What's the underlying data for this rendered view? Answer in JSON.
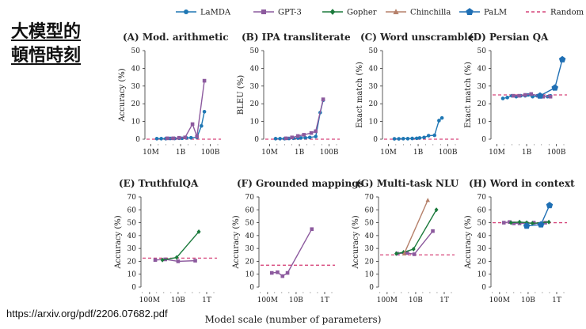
{
  "page": {
    "title_line1": "大模型的",
    "title_line2": "頓悟時刻",
    "source": "https://arxiv.org/pdf/2206.07682.pdf",
    "x_axis_label": "Model scale (number of parameters)"
  },
  "legend": [
    {
      "name": "LaMDA",
      "color": "#1f77b4",
      "marker": "circle",
      "style": "solid"
    },
    {
      "name": "GPT-3",
      "color": "#8c5a9e",
      "marker": "square",
      "style": "solid"
    },
    {
      "name": "Gopher",
      "color": "#1b7a3c",
      "marker": "diamond",
      "style": "solid"
    },
    {
      "name": "Chinchilla",
      "color": "#b5806a",
      "marker": "triangle",
      "style": "solid"
    },
    {
      "name": "PaLM",
      "color": "#1f6fb4",
      "marker": "pentagon",
      "style": "solid"
    },
    {
      "name": "Random",
      "color": "#d6457a",
      "marker": "none",
      "style": "dashed"
    }
  ],
  "chart_data": [
    {
      "type": "line",
      "title": "(A) Mod. arithmetic",
      "ylabel": "Accuracy (%)",
      "ylim": [
        0,
        50
      ],
      "yticks": [
        0,
        10,
        20,
        30,
        40,
        50
      ],
      "xticks": [
        {
          "label": "10M",
          "v": 7
        },
        {
          "label": "1B",
          "v": 9
        },
        {
          "label": "100B",
          "v": 11
        }
      ],
      "xlim": [
        6.6,
        11.5
      ],
      "random": 0,
      "series": [
        {
          "name": "LaMDA",
          "x": [
            7.4,
            7.7,
            8.0,
            8.3,
            8.6,
            8.9,
            9.1,
            9.4,
            9.7,
            10.1,
            10.4,
            10.6
          ],
          "y": [
            0.3,
            0.3,
            0.3,
            0.4,
            0.4,
            0.5,
            0.5,
            0.7,
            0.8,
            1,
            7.5,
            15.5
          ]
        },
        {
          "name": "GPT-3",
          "x": [
            8.1,
            8.5,
            8.9,
            9.3,
            9.8,
            10.1,
            10.6
          ],
          "y": [
            0.5,
            0.5,
            0.8,
            1,
            8.5,
            1.5,
            33
          ]
        }
      ]
    },
    {
      "type": "line",
      "title": "(B) IPA transliterate",
      "ylabel": "BLEU (%)",
      "ylim": [
        0,
        50
      ],
      "yticks": [
        0,
        10,
        20,
        30,
        40,
        50
      ],
      "xticks": [
        {
          "label": "10M",
          "v": 7
        },
        {
          "label": "1B",
          "v": 9
        },
        {
          "label": "100B",
          "v": 11
        }
      ],
      "xlim": [
        6.6,
        11.5
      ],
      "random": 0,
      "series": [
        {
          "name": "LaMDA",
          "x": [
            7.4,
            7.7,
            8.0,
            8.3,
            8.6,
            8.9,
            9.1,
            9.4,
            9.7,
            10.1,
            10.4,
            10.6
          ],
          "y": [
            0.3,
            0.3,
            0.3,
            0.4,
            0.5,
            0.6,
            0.7,
            0.8,
            1,
            1.5,
            15,
            22
          ]
        },
        {
          "name": "GPT-3",
          "x": [
            8.1,
            8.5,
            8.9,
            9.3,
            9.8,
            10.1,
            10.6
          ],
          "y": [
            0.5,
            1,
            1.8,
            2.5,
            3.5,
            4.5,
            22.5
          ]
        }
      ]
    },
    {
      "type": "line",
      "title": "(C) Word unscramble",
      "ylabel": "Exact match (%)",
      "ylim": [
        0,
        50
      ],
      "yticks": [
        0,
        10,
        20,
        30,
        40,
        50
      ],
      "xticks": [
        {
          "label": "10M",
          "v": 7
        },
        {
          "label": "1B",
          "v": 9
        },
        {
          "label": "100B",
          "v": 11
        }
      ],
      "xlim": [
        6.6,
        11.5
      ],
      "random": 0,
      "series": [
        {
          "name": "LaMDA",
          "x": [
            7.4,
            7.7,
            8.0,
            8.3,
            8.6,
            8.9,
            9.1,
            9.4,
            9.7,
            10.1,
            10.4,
            10.6
          ],
          "y": [
            0.2,
            0.2,
            0.3,
            0.3,
            0.4,
            0.5,
            0.7,
            1,
            2,
            2.2,
            10.5,
            12
          ]
        }
      ]
    },
    {
      "type": "line",
      "title": "(D) Persian QA",
      "ylabel": "Exact match (%)",
      "ylim": [
        0,
        50
      ],
      "yticks": [
        0,
        10,
        20,
        30,
        40,
        50
      ],
      "xticks": [
        {
          "label": "10M",
          "v": 7
        },
        {
          "label": "1B",
          "v": 9
        },
        {
          "label": "100B",
          "v": 11
        }
      ],
      "xlim": [
        6.6,
        11.5
      ],
      "random": 25,
      "series": [
        {
          "name": "LaMDA",
          "x": [
            7.4,
            7.7,
            8.0,
            8.3,
            8.6,
            8.9,
            9.1,
            9.4,
            9.7,
            10.1,
            10.4,
            10.6
          ],
          "y": [
            23,
            23.5,
            24.5,
            24,
            24.5,
            24.5,
            25,
            24,
            24.5,
            24,
            24,
            24.5
          ]
        },
        {
          "name": "GPT-3",
          "x": [
            8.1,
            8.5,
            8.9,
            9.3,
            9.8,
            10.1,
            10.6
          ],
          "y": [
            24.5,
            24.5,
            25,
            25.5,
            24.5,
            24,
            24
          ]
        },
        {
          "name": "PaLM",
          "x": [
            9.9,
            10.9,
            11.4
          ],
          "y": [
            24.5,
            29,
            45
          ]
        }
      ]
    },
    {
      "type": "line",
      "title": "(E) TruthfulQA",
      "ylabel": "Accuracy (%)",
      "ylim": [
        0,
        70
      ],
      "yticks": [
        0,
        10,
        20,
        30,
        40,
        50,
        60,
        70
      ],
      "xticks": [
        {
          "label": "100M",
          "v": 8
        },
        {
          "label": "10B",
          "v": 10
        },
        {
          "label": "1T",
          "v": 12
        }
      ],
      "xlim": [
        7.4,
        12.5
      ],
      "random": 22.5,
      "series": [
        {
          "name": "GPT-3",
          "x": [
            8.4,
            9.1,
            10.0,
            11.2
          ],
          "y": [
            21,
            21.5,
            20,
            20.5
          ]
        },
        {
          "name": "Gopher",
          "x": [
            8.9,
            9.9,
            11.45
          ],
          "y": [
            21,
            23,
            43
          ]
        }
      ]
    },
    {
      "type": "line",
      "title": "(F) Grounded mappings",
      "ylabel": "Accuracy (%)",
      "ylim": [
        0,
        70
      ],
      "yticks": [
        0,
        10,
        20,
        30,
        40,
        50,
        60,
        70
      ],
      "xticks": [
        {
          "label": "100M",
          "v": 8
        },
        {
          "label": "10B",
          "v": 10
        },
        {
          "label": "1T",
          "v": 12
        }
      ],
      "xlim": [
        7.4,
        12.5
      ],
      "random": 17,
      "series": [
        {
          "name": "GPT-3",
          "x": [
            8.3,
            8.7,
            9.05,
            9.4,
            11.1
          ],
          "y": [
            11,
            11.5,
            8.5,
            11,
            45
          ]
        }
      ]
    },
    {
      "type": "line",
      "title": "(G) Multi-task NLU",
      "ylabel": "Accuracy (%)",
      "ylim": [
        0,
        70
      ],
      "yticks": [
        0,
        10,
        20,
        30,
        40,
        50,
        60,
        70
      ],
      "xticks": [
        {
          "label": "100M",
          "v": 8
        },
        {
          "label": "10B",
          "v": 10
        },
        {
          "label": "1T",
          "v": 12
        }
      ],
      "xlim": [
        7.4,
        12.5
      ],
      "random": 25,
      "series": [
        {
          "name": "GPT-3",
          "x": [
            8.7,
            9.4,
            9.9,
            11.2
          ],
          "y": [
            26,
            26.5,
            25.5,
            43.5
          ]
        },
        {
          "name": "Gopher",
          "x": [
            8.65,
            9.15,
            9.85,
            11.45
          ],
          "y": [
            26,
            27,
            29.5,
            60
          ]
        },
        {
          "name": "Chinchilla",
          "x": [
            9.2,
            10.85
          ],
          "y": [
            26,
            67.5
          ]
        }
      ]
    },
    {
      "type": "line",
      "title": "(H) Word in context",
      "ylabel": "Accuracy (%)",
      "ylim": [
        0,
        70
      ],
      "yticks": [
        0,
        10,
        20,
        30,
        40,
        50,
        60,
        70
      ],
      "xticks": [
        {
          "label": "100M",
          "v": 8
        },
        {
          "label": "10B",
          "v": 10
        },
        {
          "label": "1T",
          "v": 12
        }
      ],
      "xlim": [
        7.4,
        12.5
      ],
      "random": 50,
      "series": [
        {
          "name": "GPT-3",
          "x": [
            8.3,
            8.7,
            9.0,
            9.4,
            9.9,
            10.4,
            10.8,
            11.2
          ],
          "y": [
            50,
            50.5,
            49.5,
            49.5,
            49.5,
            50,
            49,
            50
          ]
        },
        {
          "name": "Gopher",
          "x": [
            8.8,
            9.4,
            9.9,
            10.3,
            11.45
          ],
          "y": [
            50,
            50.5,
            50,
            49.5,
            50.5
          ]
        },
        {
          "name": "PaLM",
          "x": [
            9.9,
            10.9,
            11.5
          ],
          "y": [
            47.5,
            48.5,
            63.5
          ]
        }
      ]
    }
  ]
}
